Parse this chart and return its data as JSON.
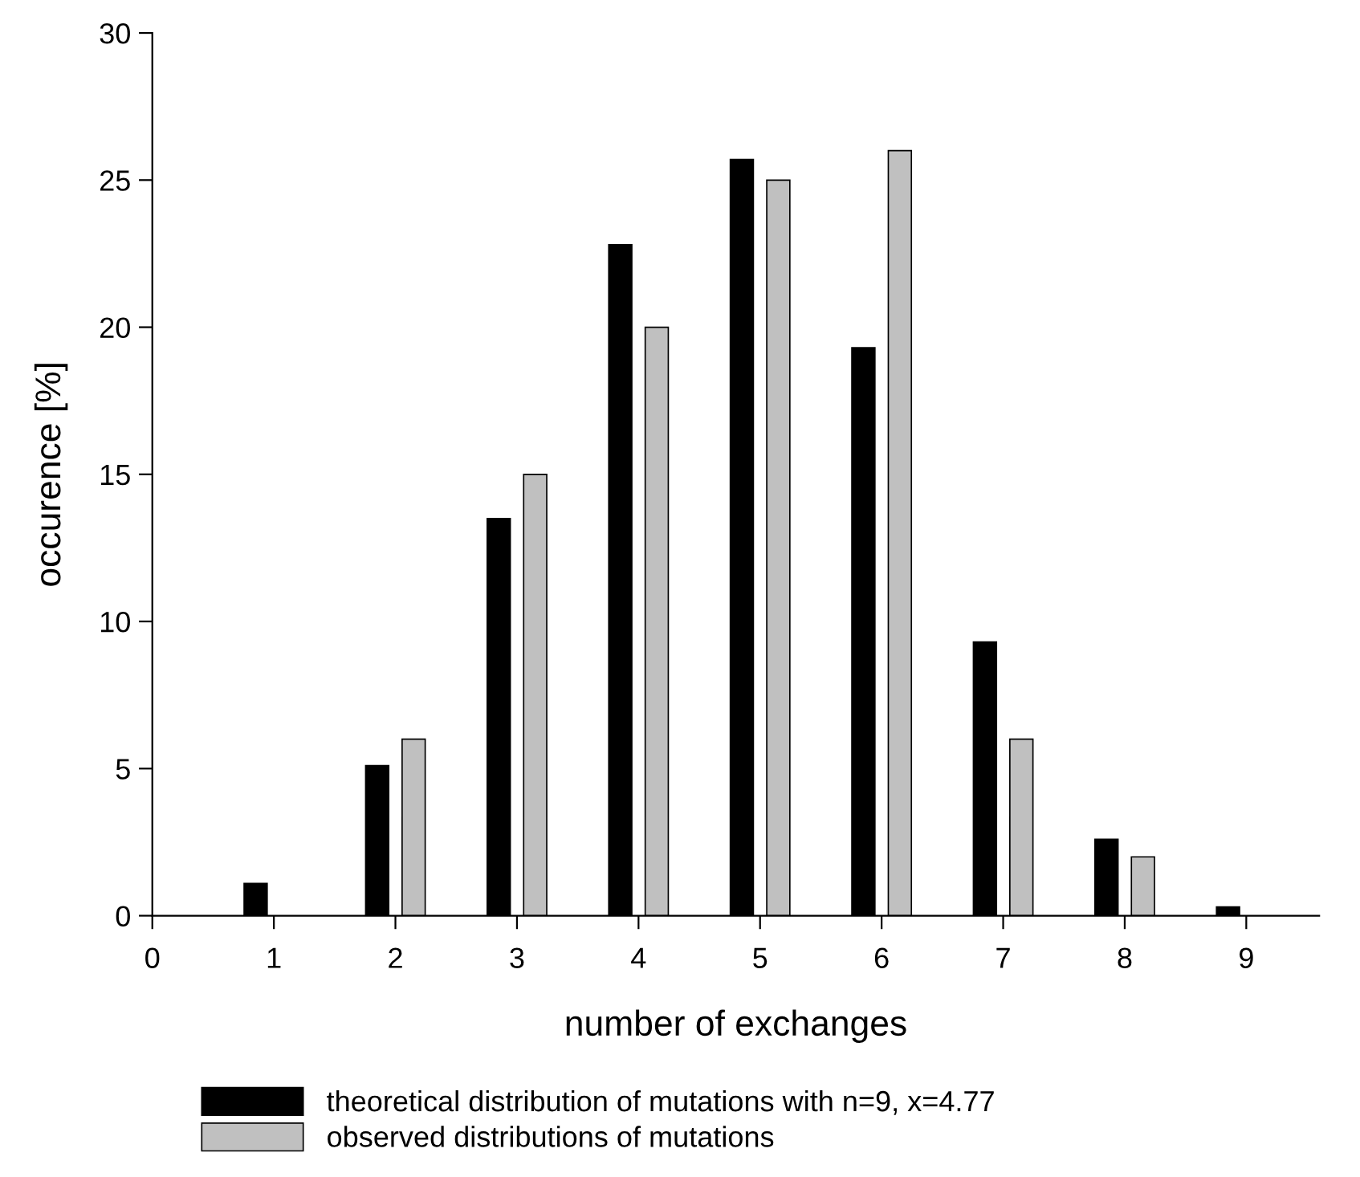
{
  "chart_data": {
    "type": "bar",
    "xlabel": "number of exchanges",
    "ylabel": "occurence [%]",
    "x": [
      1,
      2,
      3,
      4,
      5,
      6,
      7,
      8,
      9
    ],
    "series": [
      {
        "name": "theoretical distribution of mutations with n=9, x=4.77",
        "color": "#000000",
        "values": [
          1.1,
          5.1,
          13.5,
          22.8,
          25.7,
          19.3,
          9.3,
          2.6,
          0.3
        ]
      },
      {
        "name": "observed distributions of mutations",
        "color": "#c0c0c0",
        "values": [
          null,
          6,
          15,
          20,
          25,
          26,
          6,
          2,
          null
        ]
      }
    ],
    "xlim": [
      0,
      9.6
    ],
    "xticks": [
      0,
      1,
      2,
      3,
      4,
      5,
      6,
      7,
      8,
      9
    ],
    "ylim": [
      0,
      30
    ],
    "yticks": [
      0,
      5,
      10,
      15,
      20,
      25,
      30
    ],
    "grid": false,
    "legend": "bottom"
  }
}
